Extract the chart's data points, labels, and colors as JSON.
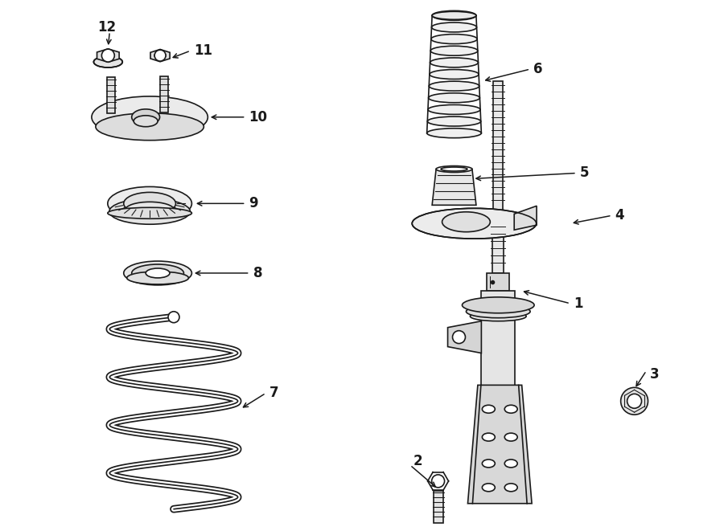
{
  "bg_color": "#ffffff",
  "line_color": "#1a1a1a",
  "lw": 1.2,
  "fig_width": 9.0,
  "fig_height": 6.61
}
